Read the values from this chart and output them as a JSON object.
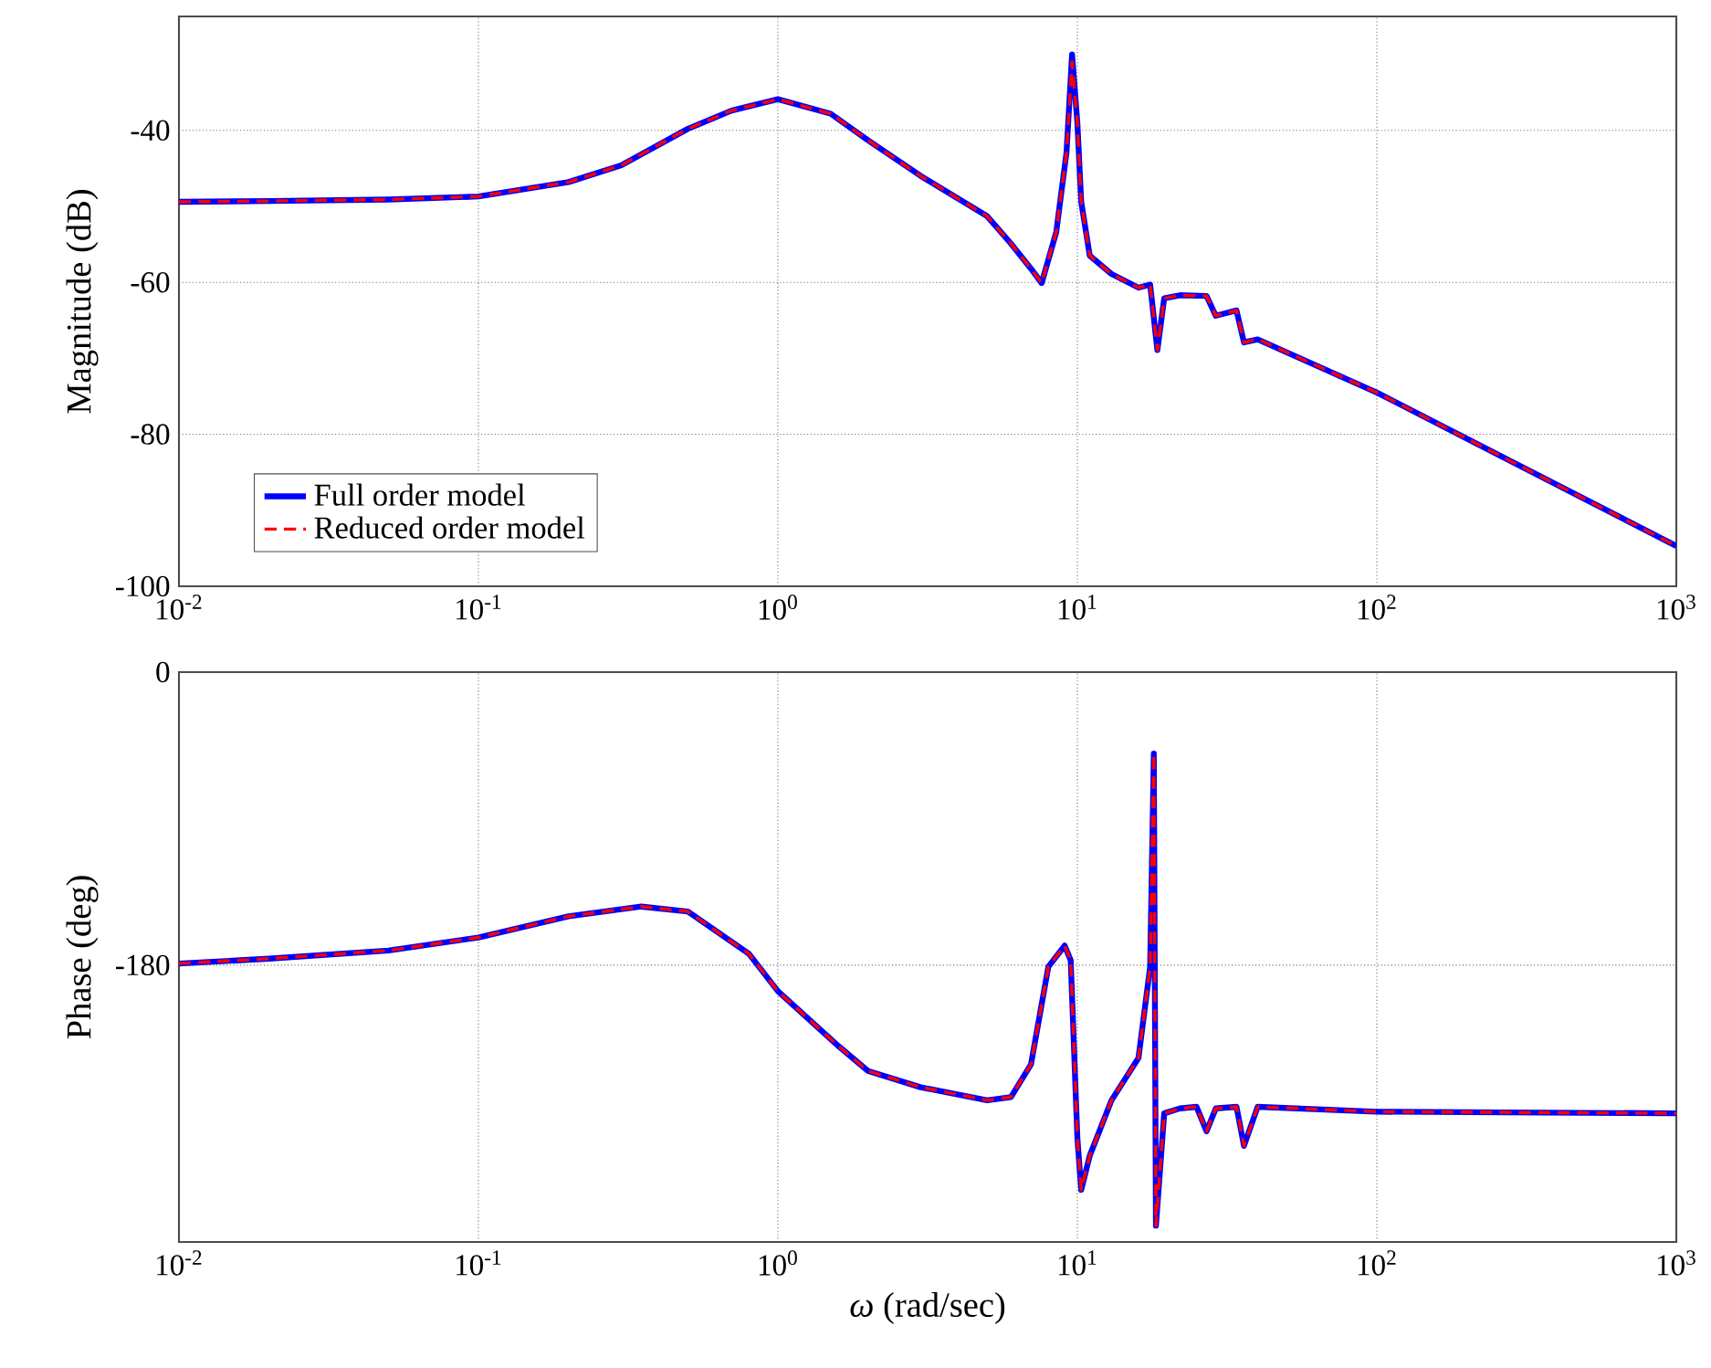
{
  "chart_data": [
    {
      "type": "line",
      "ylabel": "Magnitude (dB)",
      "log": "x",
      "grid": true,
      "legend": "bottom left",
      "xlim": [
        0.01,
        1000
      ],
      "ylim": [
        -100,
        -25
      ],
      "xticks": [
        {
          "value": 0.01,
          "label": "10$^{-2}$"
        },
        {
          "value": 0.1,
          "label": "10$^{-1}$"
        },
        {
          "value": 1,
          "label": "10$^{0}$"
        },
        {
          "value": 10,
          "label": "10$^{1}$"
        },
        {
          "value": 100,
          "label": "10$^{2}$"
        },
        {
          "value": 1000,
          "label": "10$^{3}$"
        }
      ],
      "yticks": [
        -100,
        -80,
        -60,
        -40
      ],
      "x": [
        0.01,
        0.02,
        0.05,
        0.1,
        0.2,
        0.3,
        0.5,
        0.7,
        1,
        1.5,
        2,
        3,
        5,
        6,
        7,
        7.6,
        8.5,
        9.2,
        9.6,
        10,
        10.3,
        11,
        13,
        16,
        17.5,
        18.5,
        19.5,
        22,
        27,
        29,
        34,
        36,
        40,
        100,
        1000
      ],
      "series": [
        {
          "name": "Full order model",
          "color": "#0000ff",
          "line_style": "solid",
          "values": [
            -49.4,
            -49.3,
            -49.1,
            -48.7,
            -46.8,
            -44.6,
            -39.8,
            -37.4,
            -35.9,
            -37.8,
            -41.3,
            -46.0,
            -51.3,
            -54.9,
            -58.2,
            -60.1,
            -53.4,
            -42.9,
            -30.0,
            -39.0,
            -49.4,
            -56.5,
            -58.9,
            -60.7,
            -60.3,
            -68.9,
            -62.1,
            -61.7,
            -61.8,
            -64.4,
            -63.7,
            -67.9,
            -67.5,
            -74.5,
            -94.7
          ]
        },
        {
          "name": "Reduced order model",
          "color": "#ff0000",
          "line_style": "dashed",
          "values": [
            -49.4,
            -49.3,
            -49.1,
            -48.7,
            -46.8,
            -44.6,
            -39.8,
            -37.4,
            -35.9,
            -37.8,
            -41.3,
            -46.0,
            -51.3,
            -54.9,
            -58.2,
            -60.1,
            -53.4,
            -42.9,
            -31.0,
            -39.0,
            -49.4,
            -56.5,
            -58.9,
            -60.7,
            -60.3,
            -68.9,
            -62.1,
            -61.7,
            -61.8,
            -64.4,
            -63.7,
            -67.9,
            -67.5,
            -74.5,
            -94.7
          ]
        }
      ]
    },
    {
      "type": "line",
      "ylabel": "Phase (deg)",
      "xlabel": "*ω* (rad/sec)",
      "log": "x",
      "grid": true,
      "xlim": [
        0.01,
        1000
      ],
      "ylim": [
        -350,
        0
      ],
      "xticks": [
        {
          "value": 0.01,
          "label": "10$^{-2}$"
        },
        {
          "value": 0.1,
          "label": "10$^{-1}$"
        },
        {
          "value": 1,
          "label": "10$^{0}$"
        },
        {
          "value": 10,
          "label": "10$^{1}$"
        },
        {
          "value": 100,
          "label": "10$^{2}$"
        },
        {
          "value": 1000,
          "label": "10$^{3}$"
        }
      ],
      "yticks": [
        -180,
        0
      ],
      "x": [
        0.01,
        0.02,
        0.05,
        0.1,
        0.2,
        0.35,
        0.5,
        0.8,
        1,
        1.6,
        2,
        3,
        5,
        6,
        7,
        8,
        9.07,
        9.5,
        10,
        10.3,
        11,
        13,
        16,
        17.5,
        18,
        18.3,
        19.5,
        22,
        25,
        27,
        29,
        34,
        36,
        40,
        100,
        1000
      ],
      "series": [
        {
          "color": "#0000ff",
          "line_style": "solid",
          "values": [
            -179,
            -176,
            -171,
            -163,
            -150,
            -144,
            -147,
            -173,
            -196,
            -230,
            -245,
            -255,
            -263,
            -261,
            -241,
            -181,
            -168,
            -177,
            -286,
            -318,
            -297,
            -263,
            -237,
            -181,
            -50,
            -340,
            -271,
            -268,
            -267,
            -282,
            -268,
            -267,
            -291,
            -267,
            -270,
            -271
          ]
        },
        {
          "color": "#ff0000",
          "line_style": "dashed",
          "values": [
            -179,
            -176,
            -171,
            -163,
            -150,
            -144,
            -147,
            -173,
            -196,
            -230,
            -245,
            -255,
            -263,
            -261,
            -241,
            -181,
            -168,
            -177,
            -286,
            -318,
            -297,
            -263,
            -237,
            -181,
            -50,
            -340,
            -271,
            -268,
            -267,
            -282,
            -268,
            -267,
            -291,
            -267,
            -270,
            -271
          ]
        }
      ]
    }
  ]
}
